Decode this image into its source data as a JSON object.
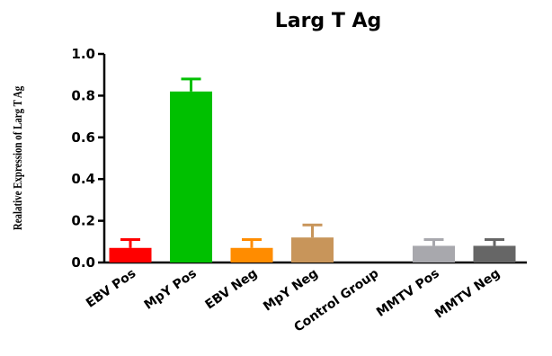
{
  "chart_data": {
    "type": "bar",
    "title": "Larg T Ag",
    "ylabel": "Realative Expression of Larg T Ag",
    "xlabel": "",
    "ylim": [
      0,
      1.0
    ],
    "yticks": [
      "0.0",
      "0.2",
      "0.4",
      "0.6",
      "0.8",
      "1.0"
    ],
    "categories": [
      "EBV Pos",
      "MpY Pos",
      "EBV Neg",
      "MpY Neg",
      "Control Group",
      "MMTV Pos",
      "MMTV Neg"
    ],
    "values": [
      0.07,
      0.82,
      0.07,
      0.12,
      0.0,
      0.08,
      0.08
    ],
    "error": [
      0.04,
      0.06,
      0.04,
      0.06,
      0.0,
      0.03,
      0.03
    ],
    "colors": [
      "#ff0000",
      "#00c000",
      "#ff8c00",
      "#c8955a",
      "#2a2a2a",
      "#a8a8ad",
      "#666666"
    ],
    "grid": false,
    "legend": "none"
  }
}
